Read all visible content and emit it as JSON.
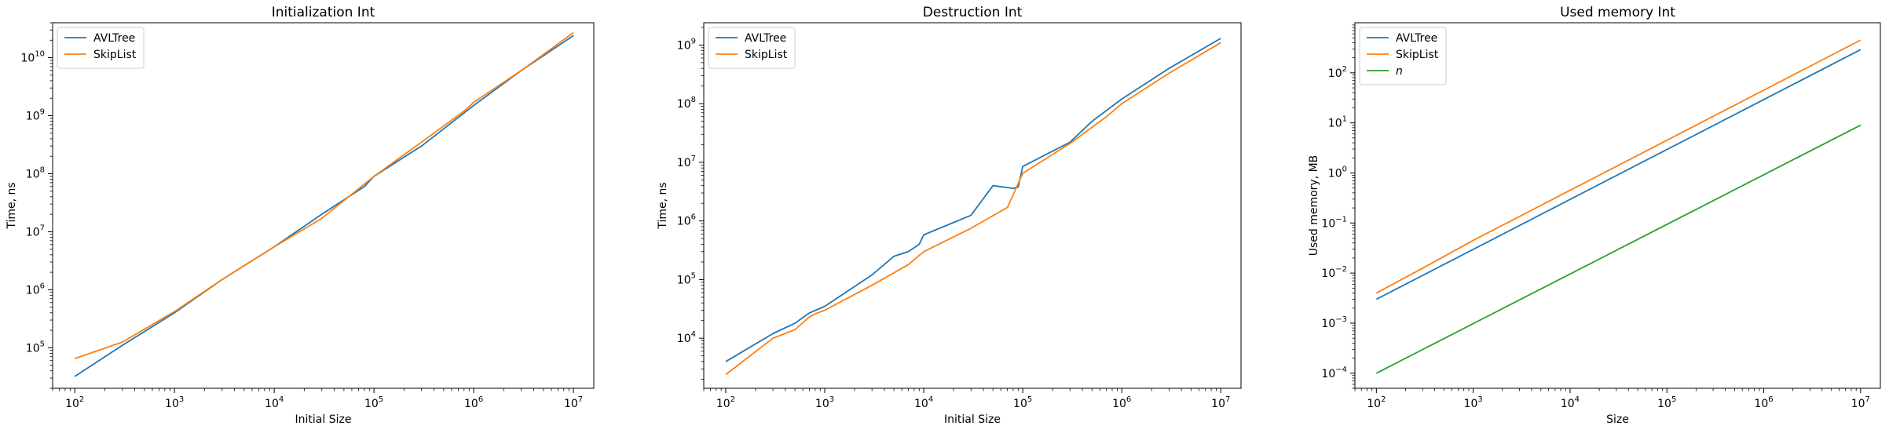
{
  "colors": {
    "avltree": "#1f77b4",
    "skiplist": "#ff7f0e",
    "n": "#2ca02c"
  },
  "chart_data": [
    {
      "type": "line",
      "title": "Initialization Int",
      "xlabel": "Initial Size",
      "ylabel": "Time, ns",
      "xscale": "log",
      "yscale": "log",
      "xlim": [
        60,
        16000000
      ],
      "ylim": [
        20000,
        40000000000
      ],
      "xticks": [
        {
          "value": 100,
          "base": "10",
          "exp": "2"
        },
        {
          "value": 1000,
          "base": "10",
          "exp": "3"
        },
        {
          "value": 10000,
          "base": "10",
          "exp": "4"
        },
        {
          "value": 100000,
          "base": "10",
          "exp": "5"
        },
        {
          "value": 1000000,
          "base": "10",
          "exp": "6"
        },
        {
          "value": 10000000,
          "base": "10",
          "exp": "7"
        }
      ],
      "yticks": [
        {
          "value": 100000,
          "base": "10",
          "exp": "5"
        },
        {
          "value": 1000000,
          "base": "10",
          "exp": "6"
        },
        {
          "value": 10000000,
          "base": "10",
          "exp": "7"
        },
        {
          "value": 100000000,
          "base": "10",
          "exp": "8"
        },
        {
          "value": 1000000000,
          "base": "10",
          "exp": "9"
        },
        {
          "value": 10000000000,
          "base": "10",
          "exp": "10"
        }
      ],
      "legend": {
        "position": "top-left"
      },
      "series": [
        {
          "name": "AVLTree",
          "color_key": "avltree",
          "points": [
            [
              100,
              32000
            ],
            [
              300,
              110000
            ],
            [
              1000,
              400000
            ],
            [
              3000,
              1500000
            ],
            [
              10000,
              5500000
            ],
            [
              30000,
              20000000
            ],
            [
              80000,
              60000000
            ],
            [
              100000,
              90000000
            ],
            [
              300000,
              300000000
            ],
            [
              1000000,
              1500000000
            ],
            [
              3000000,
              6000000000
            ],
            [
              10000000,
              24000000000
            ]
          ]
        },
        {
          "name": "SkipList",
          "color_key": "skiplist",
          "points": [
            [
              100,
              65000
            ],
            [
              300,
              125000
            ],
            [
              1000,
              420000
            ],
            [
              3000,
              1500000
            ],
            [
              10000,
              5500000
            ],
            [
              30000,
              17000000
            ],
            [
              100000,
              90000000
            ],
            [
              300000,
              350000000
            ],
            [
              800000,
              1200000000
            ],
            [
              1000000,
              1700000000
            ],
            [
              3000000,
              6000000000
            ],
            [
              10000000,
              27000000000
            ]
          ]
        }
      ]
    },
    {
      "type": "line",
      "title": "Destruction Int",
      "xlabel": "Initial Size",
      "ylabel": "Time, ns",
      "xscale": "log",
      "yscale": "log",
      "xlim": [
        60,
        16000000
      ],
      "ylim": [
        1400,
        2400000000
      ],
      "xticks": [
        {
          "value": 100,
          "base": "10",
          "exp": "2"
        },
        {
          "value": 1000,
          "base": "10",
          "exp": "3"
        },
        {
          "value": 10000,
          "base": "10",
          "exp": "4"
        },
        {
          "value": 100000,
          "base": "10",
          "exp": "5"
        },
        {
          "value": 1000000,
          "base": "10",
          "exp": "6"
        },
        {
          "value": 10000000,
          "base": "10",
          "exp": "7"
        }
      ],
      "yticks": [
        {
          "value": 10000,
          "base": "10",
          "exp": "4"
        },
        {
          "value": 100000,
          "base": "10",
          "exp": "5"
        },
        {
          "value": 1000000,
          "base": "10",
          "exp": "6"
        },
        {
          "value": 10000000,
          "base": "10",
          "exp": "7"
        },
        {
          "value": 100000000,
          "base": "10",
          "exp": "8"
        },
        {
          "value": 1000000000,
          "base": "10",
          "exp": "9"
        }
      ],
      "legend": {
        "position": "top-left"
      },
      "series": [
        {
          "name": "AVLTree",
          "color_key": "avltree",
          "points": [
            [
              100,
              4000
            ],
            [
              300,
              12000
            ],
            [
              500,
              18000
            ],
            [
              700,
              27000
            ],
            [
              1000,
              35000
            ],
            [
              3000,
              120000
            ],
            [
              5000,
              250000
            ],
            [
              7000,
              300000
            ],
            [
              9000,
              400000
            ],
            [
              10000,
              580000
            ],
            [
              30000,
              1250000
            ],
            [
              50000,
              4000000
            ],
            [
              80000,
              3600000
            ],
            [
              90000,
              3800000
            ],
            [
              100000,
              8500000
            ],
            [
              300000,
              22000000
            ],
            [
              500000,
              50000000
            ],
            [
              1000000,
              120000000
            ],
            [
              3000000,
              400000000
            ],
            [
              10000000,
              1300000000
            ]
          ]
        },
        {
          "name": "SkipList",
          "color_key": "skiplist",
          "points": [
            [
              100,
              2400
            ],
            [
              300,
              10000
            ],
            [
              500,
              14000
            ],
            [
              700,
              23000
            ],
            [
              800,
              26000
            ],
            [
              1000,
              30000
            ],
            [
              3000,
              80000
            ],
            [
              7000,
              180000
            ],
            [
              10000,
              300000
            ],
            [
              30000,
              750000
            ],
            [
              70000,
              1700000
            ],
            [
              100000,
              6500000
            ],
            [
              300000,
              21000000
            ],
            [
              700000,
              60000000
            ],
            [
              1000000,
              100000000
            ],
            [
              3000000,
              330000000
            ],
            [
              10000000,
              1100000000
            ]
          ]
        }
      ]
    },
    {
      "type": "line",
      "title": "Used memory Int",
      "xlabel": "Size",
      "ylabel": "Used memory, MB",
      "xscale": "log",
      "yscale": "log",
      "xlim": [
        60,
        16000000
      ],
      "ylim": [
        5e-05,
        1000
      ],
      "xticks": [
        {
          "value": 100,
          "base": "10",
          "exp": "2"
        },
        {
          "value": 1000,
          "base": "10",
          "exp": "3"
        },
        {
          "value": 10000,
          "base": "10",
          "exp": "4"
        },
        {
          "value": 100000,
          "base": "10",
          "exp": "5"
        },
        {
          "value": 1000000,
          "base": "10",
          "exp": "6"
        },
        {
          "value": 10000000,
          "base": "10",
          "exp": "7"
        }
      ],
      "yticks": [
        {
          "value": 0.0001,
          "base": "10",
          "exp": "−4"
        },
        {
          "value": 0.001,
          "base": "10",
          "exp": "−3"
        },
        {
          "value": 0.01,
          "base": "10",
          "exp": "−2"
        },
        {
          "value": 0.1,
          "base": "10",
          "exp": "−1"
        },
        {
          "value": 1,
          "base": "10",
          "exp": "0"
        },
        {
          "value": 10,
          "base": "10",
          "exp": "1"
        },
        {
          "value": 100,
          "base": "10",
          "exp": "2"
        }
      ],
      "legend": {
        "position": "top-left"
      },
      "series": [
        {
          "name": "AVLTree",
          "color_key": "avltree",
          "points": [
            [
              100,
              0.003
            ],
            [
              10000000,
              290
            ]
          ]
        },
        {
          "name": "SkipList",
          "color_key": "skiplist",
          "points": [
            [
              100,
              0.004
            ],
            [
              300,
              0.0125
            ],
            [
              1000,
              0.045
            ],
            [
              10000,
              0.45
            ],
            [
              100000,
              4.5
            ],
            [
              1000000,
              45
            ],
            [
              10000000,
              450
            ]
          ]
        },
        {
          "name": "n",
          "name_italic": true,
          "color_key": "n",
          "points": [
            [
              100,
              0.0001
            ],
            [
              10000000,
              9
            ]
          ]
        }
      ]
    }
  ]
}
